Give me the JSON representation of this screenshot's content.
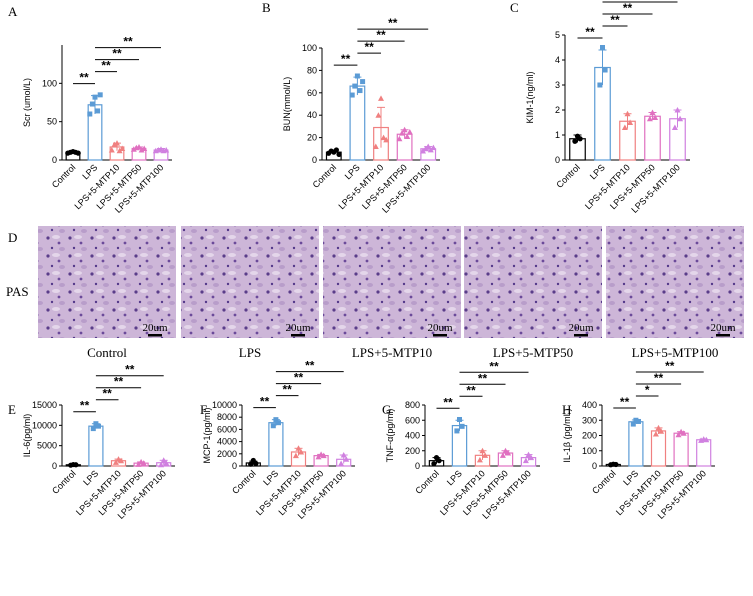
{
  "chart_data": [
    {
      "type": "bar",
      "panel": "A",
      "ylabel": "Scr (umol/L)",
      "categories": [
        "Control",
        "LPS",
        "LPS+5-MTP10",
        "LPS+5-MTP50",
        "LPS+5-MTP100"
      ],
      "colors": [
        "#000000",
        "#5b9bd5",
        "#f08080",
        "#e070c0",
        "#d080e0"
      ],
      "values": [
        10,
        72,
        17,
        15,
        13
      ],
      "errors": [
        1,
        12,
        5,
        2,
        2
      ],
      "points": [
        [
          9,
          10,
          11,
          10,
          9
        ],
        [
          60,
          73,
          82,
          64,
          85
        ],
        [
          13,
          20,
          22,
          12,
          15
        ],
        [
          14,
          16,
          17,
          13,
          15
        ],
        [
          12,
          13,
          14,
          12,
          13
        ]
      ],
      "ylim": [
        0,
        150
      ],
      "yticks": [
        0,
        50,
        100
      ],
      "comparisons": [
        {
          "groups": [
            "Control",
            "LPS"
          ],
          "label": "**"
        },
        {
          "groups": [
            "LPS",
            "LPS+5-MTP10"
          ],
          "label": "**"
        },
        {
          "groups": [
            "LPS",
            "LPS+5-MTP50"
          ],
          "label": "**"
        },
        {
          "groups": [
            "LPS",
            "LPS+5-MTP100"
          ],
          "label": "**"
        }
      ]
    },
    {
      "type": "bar",
      "panel": "B",
      "ylabel": "BUN(mmol/L)",
      "categories": [
        "Control",
        "LPS",
        "LPS+5-MTP10",
        "LPS+5-MTP50",
        "LPS+5-MTP100"
      ],
      "colors": [
        "#000000",
        "#5b9bd5",
        "#f08080",
        "#e070c0",
        "#d080e0"
      ],
      "values": [
        7,
        66,
        29,
        23,
        10
      ],
      "errors": [
        2,
        8,
        18,
        4,
        2
      ],
      "points": [
        [
          6,
          8,
          7,
          9,
          5
        ],
        [
          58,
          66,
          75,
          62,
          70
        ],
        [
          12,
          40,
          55,
          20,
          18
        ],
        [
          19,
          24,
          27,
          21,
          25
        ],
        [
          8,
          10,
          12,
          9,
          11
        ]
      ],
      "ylim": [
        0,
        100
      ],
      "yticks": [
        0,
        20,
        40,
        60,
        80,
        100
      ],
      "comparisons": [
        {
          "groups": [
            "Control",
            "LPS"
          ],
          "label": "**"
        },
        {
          "groups": [
            "LPS",
            "LPS+5-MTP10"
          ],
          "label": "**"
        },
        {
          "groups": [
            "LPS",
            "LPS+5-MTP50"
          ],
          "label": "**"
        },
        {
          "groups": [
            "LPS",
            "LPS+5-MTP100"
          ],
          "label": "**"
        }
      ]
    },
    {
      "type": "bar",
      "panel": "C",
      "ylabel": "KIM-1(ng/ml)",
      "categories": [
        "Control",
        "LPS",
        "LPS+5-MTP10",
        "LPS+5-MTP50",
        "LPS+5-MTP100"
      ],
      "colors": [
        "#000000",
        "#5b9bd5",
        "#f08080",
        "#e070c0",
        "#d080e0"
      ],
      "values": [
        0.85,
        3.7,
        1.55,
        1.75,
        1.65
      ],
      "errors": [
        0.15,
        0.7,
        0.3,
        0.15,
        0.35
      ],
      "points": [
        [
          0.75,
          0.95,
          0.85
        ],
        [
          3.0,
          4.5,
          3.6
        ],
        [
          1.3,
          1.85,
          1.5
        ],
        [
          1.65,
          1.9,
          1.7
        ],
        [
          1.3,
          2.0,
          1.65
        ]
      ],
      "ylim": [
        0,
        5
      ],
      "yticks": [
        0,
        1,
        2,
        3,
        4,
        5
      ],
      "comparisons": [
        {
          "groups": [
            "Control",
            "LPS"
          ],
          "label": "**"
        },
        {
          "groups": [
            "LPS",
            "LPS+5-MTP10"
          ],
          "label": "**"
        },
        {
          "groups": [
            "LPS",
            "LPS+5-MTP50"
          ],
          "label": "**"
        },
        {
          "groups": [
            "LPS",
            "LPS+5-MTP100"
          ],
          "label": "**"
        }
      ]
    },
    {
      "type": "bar",
      "panel": "E",
      "ylabel": "IL-6(pg/ml)",
      "categories": [
        "Control",
        "LPS",
        "LPS+5-MTP10",
        "LPS+5-MTP50",
        "LPS+5-MTP100"
      ],
      "colors": [
        "#000000",
        "#5b9bd5",
        "#f08080",
        "#e070c0",
        "#d080e0"
      ],
      "values": [
        300,
        9800,
        1300,
        700,
        800
      ],
      "errors": [
        100,
        600,
        400,
        300,
        600
      ],
      "points": [
        [
          200,
          350,
          300
        ],
        [
          9200,
          10400,
          9800
        ],
        [
          900,
          1700,
          1300
        ],
        [
          400,
          1000,
          700
        ],
        [
          300,
          1400,
          700
        ]
      ],
      "ylim": [
        0,
        15000
      ],
      "yticks": [
        0,
        5000,
        10000,
        15000
      ],
      "comparisons": [
        {
          "groups": [
            "Control",
            "LPS"
          ],
          "label": "**"
        },
        {
          "groups": [
            "LPS",
            "LPS+5-MTP10"
          ],
          "label": "**"
        },
        {
          "groups": [
            "LPS",
            "LPS+5-MTP50"
          ],
          "label": "**"
        },
        {
          "groups": [
            "LPS",
            "LPS+5-MTP100"
          ],
          "label": "**"
        }
      ]
    },
    {
      "type": "bar",
      "panel": "F",
      "ylabel": "MCP-1(pg/ml)",
      "categories": [
        "Control",
        "LPS",
        "LPS+5-MTP10",
        "LPS+5-MTP50",
        "LPS+5-MTP100"
      ],
      "colors": [
        "#000000",
        "#5b9bd5",
        "#f08080",
        "#e070c0",
        "#d080e0"
      ],
      "values": [
        500,
        7100,
        2300,
        1700,
        1100
      ],
      "errors": [
        300,
        500,
        600,
        200,
        700
      ],
      "points": [
        [
          300,
          900,
          400
        ],
        [
          6600,
          7600,
          7100
        ],
        [
          1700,
          2900,
          2300
        ],
        [
          1500,
          1900,
          1700
        ],
        [
          400,
          1800,
          1100
        ]
      ],
      "ylim": [
        0,
        10000
      ],
      "yticks": [
        0,
        2000,
        4000,
        6000,
        8000,
        10000
      ],
      "comparisons": [
        {
          "groups": [
            "Control",
            "LPS"
          ],
          "label": "**"
        },
        {
          "groups": [
            "LPS",
            "LPS+5-MTP10"
          ],
          "label": "**"
        },
        {
          "groups": [
            "LPS",
            "LPS+5-MTP50"
          ],
          "label": "**"
        },
        {
          "groups": [
            "LPS",
            "LPS+5-MTP100"
          ],
          "label": "**"
        }
      ]
    },
    {
      "type": "bar",
      "panel": "G",
      "ylabel": "TNF-α(pg/ml)",
      "categories": [
        "Control",
        "LPS",
        "LPS+5-MTP10",
        "LPS+5-MTP50",
        "LPS+5-MTP100"
      ],
      "colors": [
        "#000000",
        "#5b9bd5",
        "#f08080",
        "#e070c0",
        "#d080e0"
      ],
      "values": [
        70,
        530,
        140,
        170,
        110
      ],
      "errors": [
        40,
        70,
        60,
        30,
        40
      ],
      "points": [
        [
          30,
          110,
          70
        ],
        [
          460,
          610,
          520
        ],
        [
          80,
          200,
          140
        ],
        [
          140,
          200,
          170
        ],
        [
          70,
          150,
          110
        ]
      ],
      "ylim": [
        0,
        800
      ],
      "yticks": [
        0,
        200,
        400,
        600,
        800
      ],
      "comparisons": [
        {
          "groups": [
            "Control",
            "LPS"
          ],
          "label": "**"
        },
        {
          "groups": [
            "LPS",
            "LPS+5-MTP10"
          ],
          "label": "**"
        },
        {
          "groups": [
            "LPS",
            "LPS+5-MTP50"
          ],
          "label": "**"
        },
        {
          "groups": [
            "LPS",
            "LPS+5-MTP100"
          ],
          "label": "**"
        }
      ]
    },
    {
      "type": "bar",
      "panel": "H",
      "ylabel": "IL-1β (pg/mL)",
      "categories": [
        "Control",
        "LPS",
        "LPS+5-MTP10",
        "LPS+5-MTP50",
        "LPS+5-MTP100"
      ],
      "colors": [
        "#000000",
        "#5b9bd5",
        "#f08080",
        "#e070c0",
        "#d080e0"
      ],
      "values": [
        10,
        290,
        230,
        215,
        172
      ],
      "errors": [
        2,
        12,
        20,
        10,
        5
      ],
      "points": [
        [
          8,
          12,
          10
        ],
        [
          275,
          300,
          292
        ],
        [
          210,
          250,
          228
        ],
        [
          205,
          225,
          215
        ],
        [
          168,
          176,
          172
        ]
      ],
      "ylim": [
        0,
        400
      ],
      "yticks": [
        0,
        100,
        200,
        300,
        400
      ],
      "comparisons": [
        {
          "groups": [
            "Control",
            "LPS"
          ],
          "label": "**"
        },
        {
          "groups": [
            "LPS",
            "LPS+5-MTP10"
          ],
          "label": "*"
        },
        {
          "groups": [
            "LPS",
            "LPS+5-MTP50"
          ],
          "label": "**"
        },
        {
          "groups": [
            "LPS",
            "LPS+5-MTP100"
          ],
          "label": "**"
        }
      ]
    }
  ],
  "histology": {
    "panel": "D",
    "stain": "PAS",
    "scale_bar": "20um",
    "captions": [
      "Control",
      "LPS",
      "LPS+5-MTP10",
      "LPS+5-MTP50",
      "LPS+5-MTP100"
    ]
  }
}
